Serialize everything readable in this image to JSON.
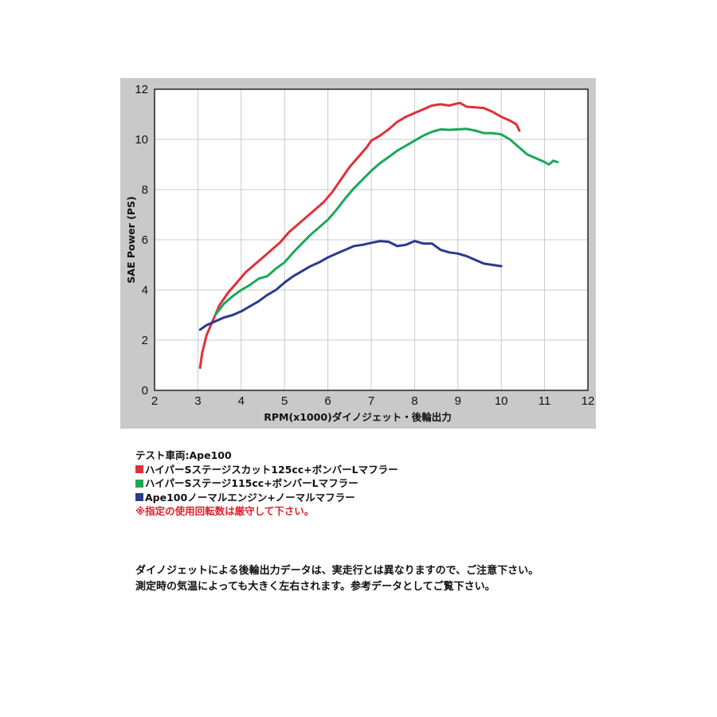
{
  "chart_data": {
    "type": "line",
    "xlabel": "RPM(x1000)ダイノジェット・後輪出力",
    "ylabel": "SAE Power (PS)",
    "xlim": [
      2,
      12
    ],
    "ylim": [
      0,
      12
    ],
    "xticks": [
      2,
      3,
      4,
      5,
      6,
      7,
      8,
      9,
      10,
      11,
      12
    ],
    "yticks": [
      0,
      2,
      4,
      6,
      8,
      10,
      12
    ],
    "grid": true,
    "colors": {
      "plot_bg": "#ffffff",
      "frame_bg": "#c9c9c9",
      "grid": "#c8c8c8"
    },
    "series": [
      {
        "name": "ハイパーSステージスカット125cc+ボンバーLマフラー",
        "color": "#e0303a",
        "x": [
          3.05,
          3.1,
          3.2,
          3.35,
          3.5,
          3.7,
          3.9,
          4.1,
          4.3,
          4.5,
          4.7,
          4.9,
          5.1,
          5.3,
          5.5,
          5.7,
          5.9,
          6.1,
          6.3,
          6.5,
          6.7,
          6.9,
          7.0,
          7.2,
          7.4,
          7.6,
          7.8,
          8.0,
          8.2,
          8.4,
          8.6,
          8.8,
          8.95,
          9.05,
          9.2,
          9.4,
          9.6,
          9.8,
          10.0,
          10.2,
          10.35,
          10.42
        ],
        "y": [
          0.9,
          1.5,
          2.2,
          2.8,
          3.4,
          3.9,
          4.3,
          4.7,
          5.0,
          5.3,
          5.6,
          5.9,
          6.3,
          6.6,
          6.9,
          7.2,
          7.5,
          7.9,
          8.4,
          8.9,
          9.3,
          9.7,
          9.95,
          10.15,
          10.4,
          10.7,
          10.9,
          11.05,
          11.2,
          11.35,
          11.4,
          11.35,
          11.42,
          11.45,
          11.3,
          11.28,
          11.25,
          11.1,
          10.9,
          10.75,
          10.6,
          10.35
        ]
      },
      {
        "name": "ハイパーSステージ115cc+ボンバーLマフラー",
        "color": "#1aa85a",
        "x": [
          3.4,
          3.6,
          3.8,
          4.0,
          4.2,
          4.4,
          4.6,
          4.8,
          5.0,
          5.2,
          5.4,
          5.6,
          5.8,
          6.0,
          6.2,
          6.4,
          6.6,
          6.8,
          7.0,
          7.2,
          7.4,
          7.6,
          7.8,
          8.0,
          8.2,
          8.4,
          8.6,
          8.8,
          9.0,
          9.2,
          9.4,
          9.6,
          9.8,
          10.0,
          10.2,
          10.4,
          10.6,
          10.8,
          11.0,
          11.1,
          11.2,
          11.3
        ],
        "y": [
          3.0,
          3.45,
          3.75,
          4.0,
          4.2,
          4.45,
          4.55,
          4.85,
          5.1,
          5.5,
          5.85,
          6.2,
          6.5,
          6.8,
          7.2,
          7.65,
          8.05,
          8.4,
          8.75,
          9.05,
          9.3,
          9.55,
          9.75,
          9.95,
          10.15,
          10.3,
          10.4,
          10.38,
          10.4,
          10.42,
          10.35,
          10.25,
          10.25,
          10.2,
          10.0,
          9.7,
          9.4,
          9.25,
          9.1,
          9.0,
          9.15,
          9.1
        ]
      },
      {
        "name": "Ape100ノーマルエンジン+ノーマルマフラー",
        "color": "#2b3a8c",
        "x": [
          3.05,
          3.2,
          3.4,
          3.6,
          3.8,
          4.0,
          4.2,
          4.4,
          4.6,
          4.8,
          5.0,
          5.2,
          5.4,
          5.6,
          5.8,
          6.0,
          6.2,
          6.4,
          6.6,
          6.8,
          7.0,
          7.2,
          7.4,
          7.6,
          7.8,
          8.0,
          8.2,
          8.4,
          8.6,
          8.8,
          9.0,
          9.2,
          9.4,
          9.6,
          9.8,
          10.0
        ],
        "y": [
          2.42,
          2.6,
          2.75,
          2.9,
          3.0,
          3.15,
          3.35,
          3.55,
          3.8,
          4.0,
          4.3,
          4.55,
          4.75,
          4.95,
          5.1,
          5.3,
          5.45,
          5.6,
          5.75,
          5.8,
          5.88,
          5.95,
          5.92,
          5.75,
          5.8,
          5.95,
          5.85,
          5.85,
          5.6,
          5.5,
          5.45,
          5.35,
          5.2,
          5.05,
          5.0,
          4.95
        ]
      }
    ]
  },
  "legend": {
    "title": "テスト車両:Ape100",
    "items": [
      {
        "label": "ハイパーSステージスカット125cc+ボンバーLマフラー",
        "color": "#e0303a"
      },
      {
        "label": "ハイパーSステージ115cc+ボンバーLマフラー",
        "color": "#1aa85a"
      },
      {
        "label": "Ape100ノーマルエンジン+ノーマルマフラー",
        "color": "#2b3a8c"
      }
    ],
    "warning": "※指定の使用回転数は厳守して下さい。"
  },
  "note": {
    "line1": "ダイノジェットによる後輪出力データは、実走行とは異なりますので、ご注意下さい。",
    "line2": "測定時の気温によっても大きく左右されます。参考データとしてご覧下さい。"
  }
}
